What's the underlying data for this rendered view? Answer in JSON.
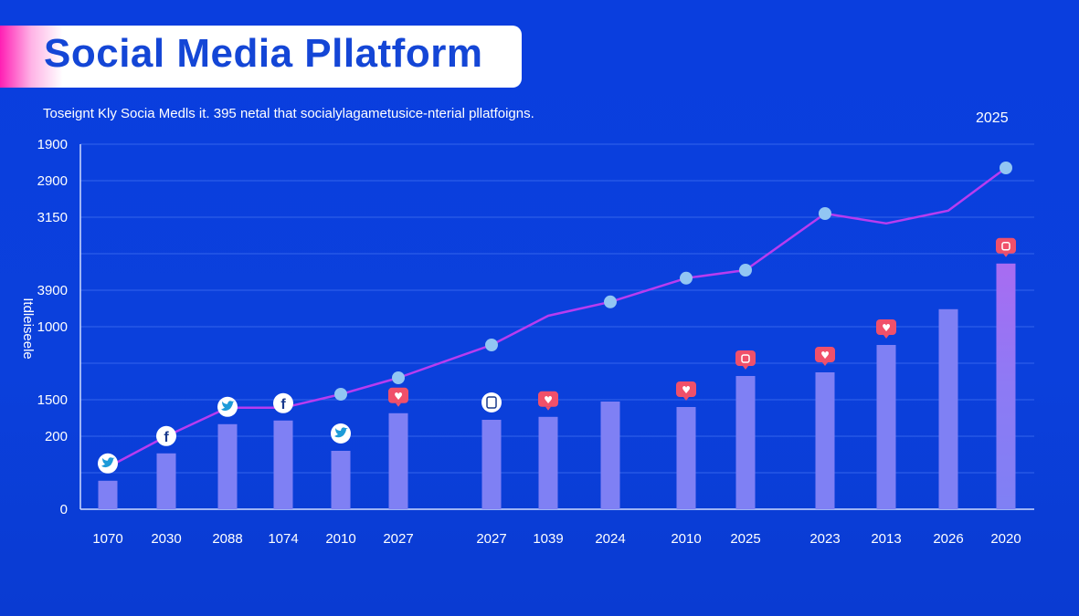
{
  "header": {
    "title": "Social Media Pllatform",
    "subtitle": "Toseignt Kly Socia Medls it. 395 netal that socialylagametusice-nterial pllatfoigns.",
    "corner_label": "2025"
  },
  "colors": {
    "background": "#0a3ede",
    "bar": "#7f80f4",
    "bar_top_highlight": "#a86cf2",
    "line": "#b83cf0",
    "marker": "#92c6f3",
    "title_text": "#1446d6",
    "badge_red": "#f0506a"
  },
  "chart_data": {
    "type": "bar+line",
    "title": "Social Media Pllatform",
    "ylabel": "Itdleiseele",
    "xlabel": "",
    "grid": true,
    "ylim": [
      0,
      10
    ],
    "y_ticks": [
      {
        "value": 10,
        "label": "1900"
      },
      {
        "value": 9,
        "label": "2900"
      },
      {
        "value": 8,
        "label": "3150"
      },
      {
        "value": 7,
        "label": ""
      },
      {
        "value": 6,
        "label": "3900"
      },
      {
        "value": 5,
        "label": "1000"
      },
      {
        "value": 4,
        "label": ""
      },
      {
        "value": 3,
        "label": "1500"
      },
      {
        "value": 2,
        "label": "200"
      },
      {
        "value": 1,
        "label": ""
      },
      {
        "value": 0,
        "label": "0"
      }
    ],
    "categories": [
      "1070",
      "2030",
      "2088",
      "1074",
      "2010",
      "2027",
      "2027",
      "1039",
      "2024",
      "2010",
      "2025",
      "2023",
      "2013",
      "2026",
      "2020"
    ],
    "bars": [
      0.78,
      1.53,
      2.33,
      2.43,
      1.6,
      2.63,
      2.45,
      2.53,
      2.95,
      2.8,
      3.65,
      3.75,
      4.5,
      5.48,
      6.73
    ],
    "line": [
      1.15,
      2.0,
      2.78,
      2.78,
      3.15,
      3.6,
      4.5,
      5.3,
      5.68,
      6.33,
      6.55,
      8.1,
      7.83,
      8.18,
      9.35
    ],
    "line_markers": [
      false,
      false,
      false,
      false,
      true,
      true,
      true,
      false,
      true,
      true,
      true,
      true,
      false,
      false,
      true
    ],
    "icons": [
      "twitter",
      "facebook",
      "twitter",
      "facebook",
      "twitter",
      "heart",
      "instagram",
      "heart",
      "",
      "heart",
      "instagram",
      "heart",
      "heart",
      "",
      "instagram"
    ]
  }
}
